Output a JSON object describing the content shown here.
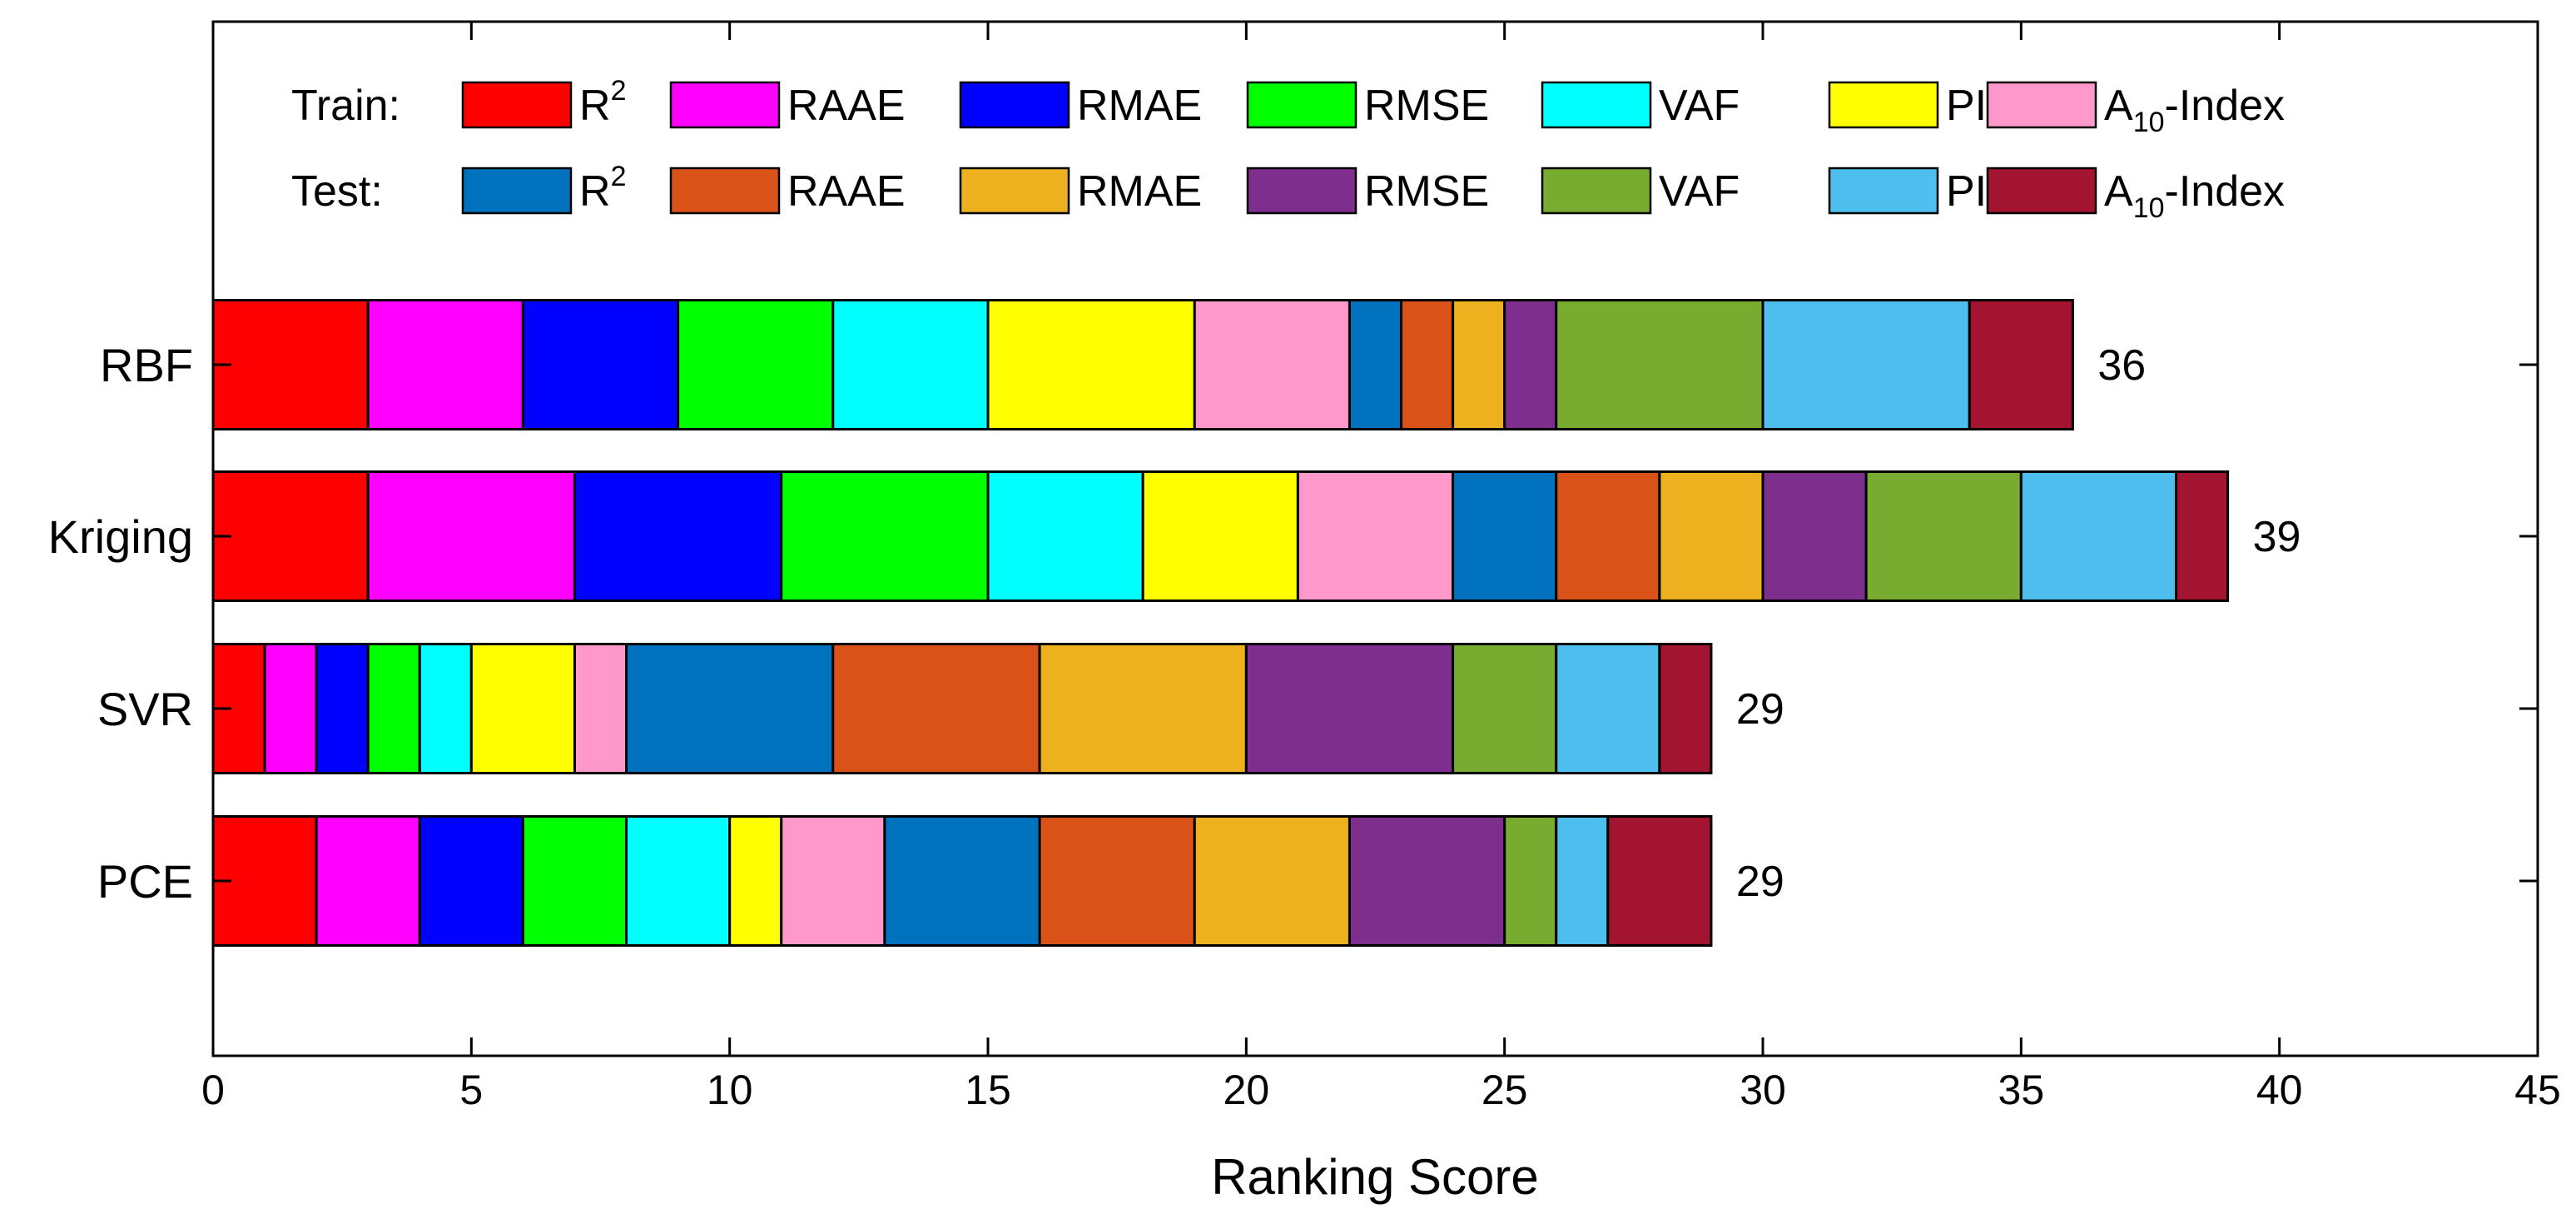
{
  "chart_data": {
    "type": "bar",
    "orientation": "horizontal",
    "stacked": true,
    "xlabel": "Ranking Score",
    "ylabel": "",
    "xlim": [
      0,
      45
    ],
    "xticks": [
      0,
      5,
      10,
      15,
      20,
      25,
      30,
      35,
      40,
      45
    ],
    "categories": [
      "RBF",
      "Kriging",
      "SVR",
      "PCE"
    ],
    "totals": [
      36,
      39,
      29,
      29
    ],
    "legend": {
      "position": "top",
      "row_labels": [
        "Train:",
        "Test:"
      ]
    },
    "series": [
      {
        "name": "R",
        "sup": "2",
        "group": "Train",
        "color": "#ff0000",
        "values": [
          3,
          3,
          1,
          2
        ]
      },
      {
        "name": "RAAE",
        "group": "Train",
        "color": "#ff00ff",
        "values": [
          3,
          4,
          1,
          2
        ]
      },
      {
        "name": "RMAE",
        "group": "Train",
        "color": "#0000ff",
        "values": [
          3,
          4,
          1,
          2
        ]
      },
      {
        "name": "RMSE",
        "group": "Train",
        "color": "#00ff00",
        "values": [
          3,
          4,
          1,
          2
        ]
      },
      {
        "name": "VAF",
        "group": "Train",
        "color": "#00ffff",
        "values": [
          3,
          3,
          1,
          2
        ]
      },
      {
        "name": "PI",
        "group": "Train",
        "color": "#ffff00",
        "values": [
          4,
          3,
          2,
          1
        ]
      },
      {
        "name": "A",
        "sub": "10",
        "suffix": "-Index",
        "group": "Train",
        "color": "#ff99cc",
        "values": [
          3,
          3,
          1,
          2
        ]
      },
      {
        "name": "R",
        "sup": "2",
        "group": "Test",
        "color": "#0072bd",
        "values": [
          1,
          2,
          4,
          3
        ]
      },
      {
        "name": "RAAE",
        "group": "Test",
        "color": "#d95319",
        "values": [
          1,
          2,
          4,
          3
        ]
      },
      {
        "name": "RMAE",
        "group": "Test",
        "color": "#edb120",
        "values": [
          1,
          2,
          4,
          3
        ]
      },
      {
        "name": "RMSE",
        "group": "Test",
        "color": "#7e2f8e",
        "values": [
          1,
          2,
          4,
          3
        ]
      },
      {
        "name": "VAF",
        "group": "Test",
        "color": "#77ac30",
        "values": [
          4,
          3,
          2,
          1
        ]
      },
      {
        "name": "PI",
        "group": "Test",
        "color": "#4dbeee",
        "values": [
          4,
          3,
          2,
          1
        ]
      },
      {
        "name": "A",
        "sub": "10",
        "suffix": "-Index",
        "group": "Test",
        "color": "#a2142f",
        "values": [
          2,
          1,
          1,
          2
        ]
      }
    ]
  }
}
